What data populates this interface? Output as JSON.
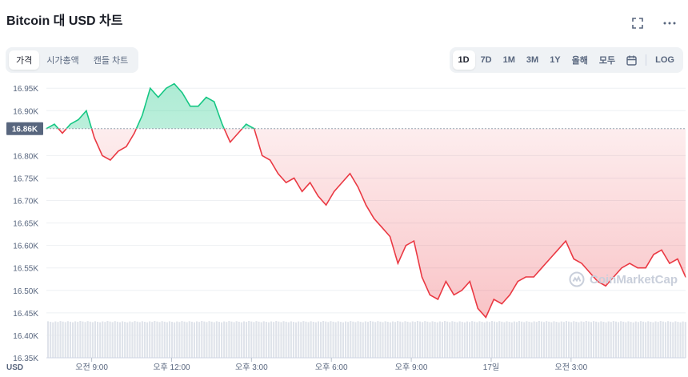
{
  "header": {
    "title": "Bitcoin 대 USD 차트"
  },
  "tabs": [
    {
      "label": "가격",
      "active": true
    },
    {
      "label": "시가총액",
      "active": false
    },
    {
      "label": "캔들 차트",
      "active": false
    }
  ],
  "ranges": [
    {
      "label": "1D",
      "active": true
    },
    {
      "label": "7D",
      "active": false
    },
    {
      "label": "1M",
      "active": false
    },
    {
      "label": "3M",
      "active": false
    },
    {
      "label": "1Y",
      "active": false
    },
    {
      "label": "올해",
      "active": false
    },
    {
      "label": "모두",
      "active": false
    }
  ],
  "log_label": "LOG",
  "watermark": "CoinMarketCap",
  "colors": {
    "up": "#16c784",
    "down": "#ea3943",
    "baseline": "#58667e",
    "volume": "#dfe3ea"
  },
  "chart_data": {
    "type": "line",
    "title": "",
    "xlabel": "",
    "ylabel": "",
    "currency_label": "USD",
    "baseline": 16.86,
    "baseline_label": "16.86K",
    "ylim": [
      16.35,
      16.97
    ],
    "xlim": [
      7.3,
      31.3
    ],
    "y_ticks": [
      {
        "v": 16.95,
        "label": "16.95K"
      },
      {
        "v": 16.9,
        "label": "16.90K"
      },
      {
        "v": 16.8,
        "label": "16.80K"
      },
      {
        "v": 16.75,
        "label": "16.75K"
      },
      {
        "v": 16.7,
        "label": "16.70K"
      },
      {
        "v": 16.65,
        "label": "16.65K"
      },
      {
        "v": 16.6,
        "label": "16.60K"
      },
      {
        "v": 16.55,
        "label": "16.55K"
      },
      {
        "v": 16.5,
        "label": "16.50K"
      },
      {
        "v": 16.45,
        "label": "16.45K"
      },
      {
        "v": 16.4,
        "label": "16.40K"
      },
      {
        "v": 16.35,
        "label": "16.35K"
      }
    ],
    "x_ticks": [
      {
        "v": 9,
        "label": "오전 9:00"
      },
      {
        "v": 12,
        "label": "오후 12:00"
      },
      {
        "v": 15,
        "label": "오후 3:00"
      },
      {
        "v": 18,
        "label": "오후 6:00"
      },
      {
        "v": 21,
        "label": "오후 9:00"
      },
      {
        "v": 24,
        "label": "17일"
      },
      {
        "v": 27,
        "label": "오전 3:00"
      }
    ],
    "series": [
      {
        "x": [
          7.3,
          7.6,
          7.9,
          8.2,
          8.5,
          8.8,
          9.1,
          9.4,
          9.7,
          10.0,
          10.3,
          10.6,
          10.9,
          11.2,
          11.5,
          11.8,
          12.1,
          12.4,
          12.7,
          13.0,
          13.3,
          13.6,
          13.9,
          14.2,
          14.5,
          14.8,
          15.1,
          15.4,
          15.7,
          16.0,
          16.3,
          16.6,
          16.9,
          17.2,
          17.5,
          17.8,
          18.1,
          18.4,
          18.7,
          19.0,
          19.3,
          19.6,
          19.9,
          20.2,
          20.5,
          20.8,
          21.1,
          21.4,
          21.7,
          22.0,
          22.3,
          22.6,
          22.9,
          23.2,
          23.5,
          23.8,
          24.1,
          24.4,
          24.7,
          25.0,
          25.3,
          25.6,
          25.9,
          26.2,
          26.5,
          26.8,
          27.1,
          27.4,
          27.7,
          28.0,
          28.3,
          28.6,
          28.9,
          29.2,
          29.5,
          29.8,
          30.1,
          30.4,
          30.7,
          31.0,
          31.3
        ],
        "y": [
          16.86,
          16.87,
          16.85,
          16.87,
          16.88,
          16.9,
          16.84,
          16.8,
          16.79,
          16.81,
          16.82,
          16.85,
          16.89,
          16.95,
          16.93,
          16.95,
          16.96,
          16.94,
          16.91,
          16.91,
          16.93,
          16.92,
          16.87,
          16.83,
          16.85,
          16.87,
          16.86,
          16.8,
          16.79,
          16.76,
          16.74,
          16.75,
          16.72,
          16.74,
          16.71,
          16.69,
          16.72,
          16.74,
          16.76,
          16.73,
          16.69,
          16.66,
          16.64,
          16.62,
          16.56,
          16.6,
          16.61,
          16.53,
          16.49,
          16.48,
          16.52,
          16.49,
          16.5,
          16.52,
          16.46,
          16.44,
          16.48,
          16.47,
          16.49,
          16.52,
          16.53,
          16.53,
          16.55,
          16.57,
          16.59,
          16.61,
          16.57,
          16.56,
          16.54,
          16.52,
          16.51,
          16.53,
          16.55,
          16.56,
          16.55,
          16.55,
          16.58,
          16.59,
          16.56,
          16.57,
          16.53
        ]
      }
    ],
    "volume": {
      "level": 16.432
    }
  }
}
